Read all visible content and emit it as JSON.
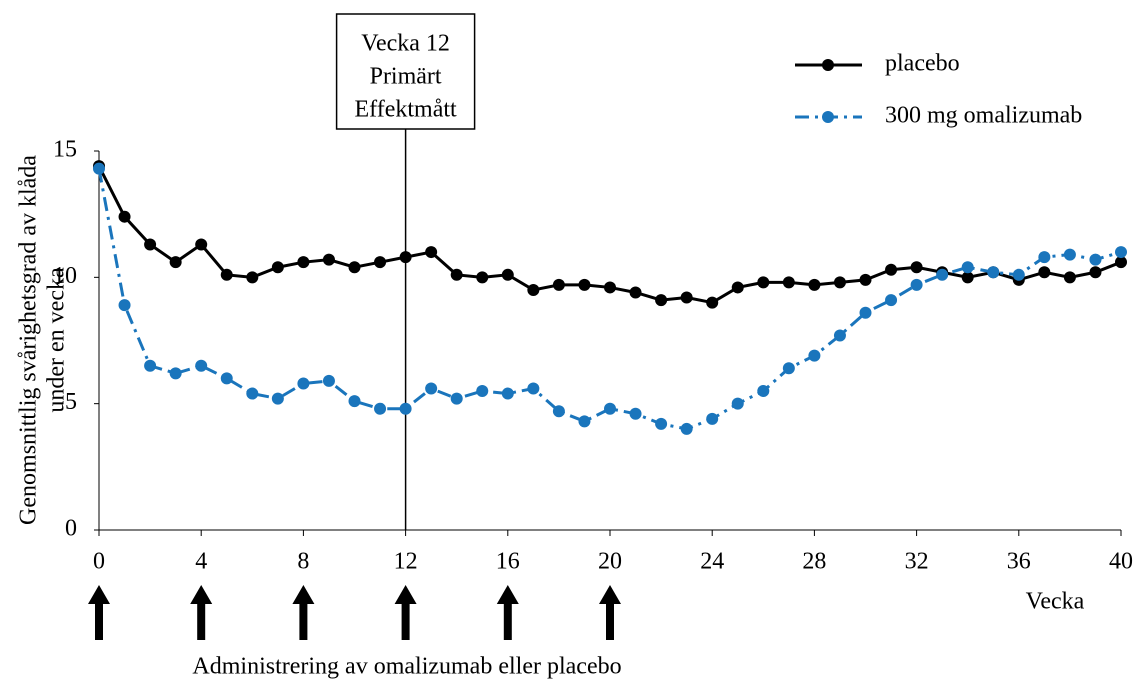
{
  "chart_data": {
    "type": "line",
    "ylabel": [
      "Genomsnittlig svårighetsgrad av klåda",
      "under en vecka"
    ],
    "xlabel": "Vecka",
    "footer": "Administrering av omalizumab eller placebo",
    "annotation": {
      "text": [
        "Vecka 12",
        "Primärt",
        "Effektmått"
      ],
      "x": 12
    },
    "dose_weeks": [
      0,
      4,
      8,
      12,
      16,
      20
    ],
    "x": [
      0,
      1,
      2,
      3,
      4,
      5,
      6,
      7,
      8,
      9,
      10,
      11,
      12,
      13,
      14,
      15,
      16,
      17,
      18,
      19,
      20,
      21,
      22,
      23,
      24,
      25,
      26,
      27,
      28,
      29,
      30,
      31,
      32,
      33,
      34,
      35,
      36,
      37,
      38,
      39,
      40
    ],
    "series": [
      {
        "name": "placebo",
        "color": "#000000",
        "values": [
          14.4,
          12.4,
          11.3,
          10.6,
          11.3,
          10.1,
          10.0,
          10.4,
          10.6,
          10.7,
          10.4,
          10.6,
          10.8,
          11.0,
          10.1,
          10.0,
          10.1,
          9.5,
          9.7,
          9.7,
          9.6,
          9.4,
          9.1,
          9.2,
          9.0,
          9.6,
          9.8,
          9.8,
          9.7,
          9.8,
          9.9,
          10.3,
          10.4,
          10.2,
          10.0,
          10.2,
          9.9,
          10.2,
          10.0,
          10.2,
          10.6
        ]
      },
      {
        "name": "300 mg omalizumab",
        "color": "#1a75bc",
        "values": [
          14.3,
          8.9,
          6.5,
          6.2,
          6.5,
          6.0,
          5.4,
          5.2,
          5.8,
          5.9,
          5.1,
          4.8,
          4.8,
          5.6,
          5.2,
          5.5,
          5.4,
          5.6,
          4.7,
          4.3,
          4.8,
          4.6,
          4.2,
          4.0,
          4.4,
          5.0,
          5.5,
          6.4,
          6.9,
          7.7,
          8.6,
          9.1,
          9.7,
          10.1,
          10.4,
          10.2,
          10.1,
          10.8,
          10.9,
          10.7,
          11.0
        ]
      }
    ],
    "xlim": [
      0,
      40
    ],
    "xticks": [
      0,
      4,
      8,
      12,
      16,
      20,
      24,
      28,
      32,
      36,
      40
    ],
    "ylim": [
      0,
      15
    ],
    "yticks": [
      0,
      5,
      10,
      15
    ]
  }
}
